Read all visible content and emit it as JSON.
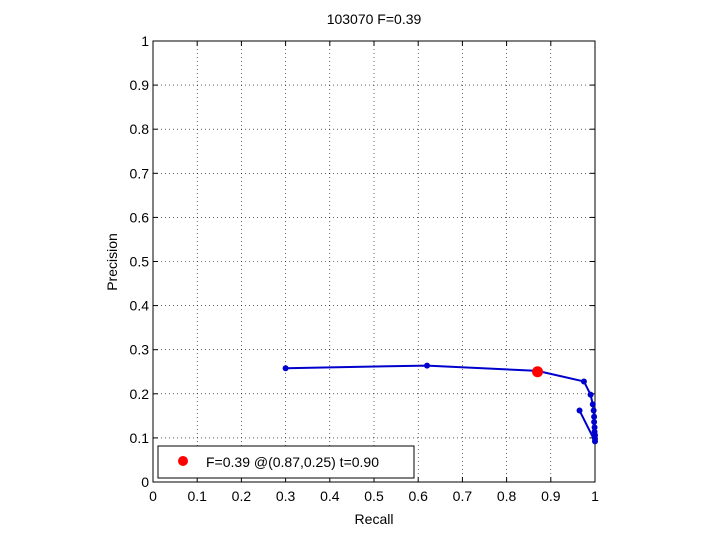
{
  "chart_data": {
    "type": "line",
    "title": "103070 F=0.39",
    "xlabel": "Recall",
    "ylabel": "Precision",
    "xlim": [
      0,
      1
    ],
    "ylim": [
      0,
      1
    ],
    "xticks": [
      0,
      0.1,
      0.2,
      0.3,
      0.4,
      0.5,
      0.6,
      0.7,
      0.8,
      0.9,
      1
    ],
    "yticks": [
      0,
      0.1,
      0.2,
      0.3,
      0.4,
      0.5,
      0.6,
      0.7,
      0.8,
      0.9,
      1
    ],
    "xtick_labels": [
      "0",
      "0.1",
      "0.2",
      "0.3",
      "0.4",
      "0.5",
      "0.6",
      "0.7",
      "0.8",
      "0.9",
      "1"
    ],
    "ytick_labels": [
      "0",
      "0.1",
      "0.2",
      "0.3",
      "0.4",
      "0.5",
      "0.6",
      "0.7",
      "0.8",
      "0.9",
      "1"
    ],
    "grid": true,
    "legend_position": "bottom-left",
    "colors": {
      "series": "#0000cc",
      "best": "#ff0000"
    },
    "series": [
      {
        "x": [
          0.3,
          0.62,
          0.87,
          0.975,
          0.99,
          0.995,
          0.997,
          0.998,
          0.998,
          0.999,
          0.999,
          1.0,
          1.0,
          1.0,
          0.965
        ],
        "y": [
          0.258,
          0.264,
          0.252,
          0.228,
          0.198,
          0.176,
          0.162,
          0.148,
          0.136,
          0.124,
          0.114,
          0.106,
          0.098,
          0.092,
          0.162
        ]
      }
    ],
    "best_point": {
      "x": 0.87,
      "y": 0.25
    },
    "legend_label": "F=0.39 @(0.87,0.25) t=0.90"
  }
}
